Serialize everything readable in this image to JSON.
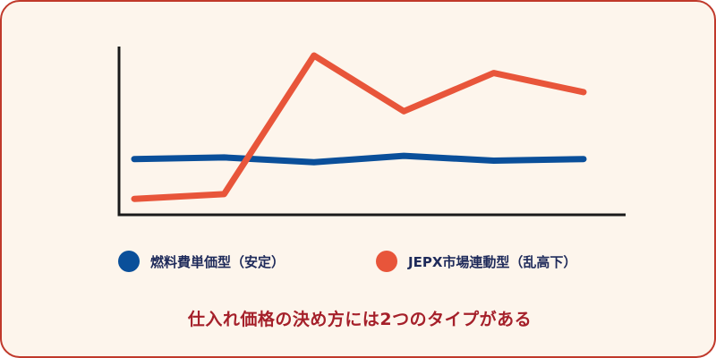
{
  "chart_data": {
    "type": "line",
    "x": [
      1,
      2,
      3,
      4,
      5,
      6
    ],
    "ylim": [
      0,
      100
    ],
    "grid": false,
    "legend_placement": "bottom",
    "series": [
      {
        "name": "燃料費単価型（安定）",
        "color": "#0a4f9a",
        "values": [
          35,
          36,
          33,
          37,
          34,
          35
        ]
      },
      {
        "name": "JEPX市場連動型（乱高下）",
        "color": "#e8553a",
        "values": [
          10,
          13,
          100,
          65,
          89,
          77
        ]
      }
    ]
  },
  "caption": "仕入れ価格の決め方には2つのタイプがある",
  "colors": {
    "background": "#fdf5ec",
    "border": "#c0392b",
    "axis": "#1a1a1a",
    "caption": "#a5202a",
    "legend_text": "#1e2a5a"
  }
}
